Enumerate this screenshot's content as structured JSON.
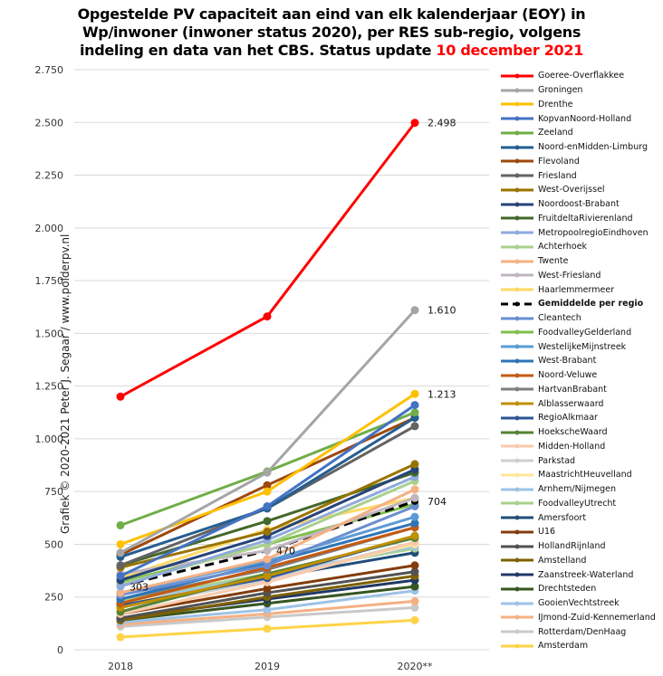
{
  "title": {
    "line1": "Opgestelde PV capaciteit aan eind van elk kalenderjaar (EOY) in",
    "line2": "Wp/inwoner (inwoner status 2020), per RES sub-regio, volgens",
    "line3_prefix": "indeling  en data van het CBS. Status update ",
    "line3_highlight": "10 december 2021"
  },
  "watermark": "Grafiek © 2020-2021 Peter J. Segaar / www.polderpv.nl",
  "chart_data": {
    "type": "line",
    "title": "Opgestelde PV capaciteit aan eind van elk kalenderjaar (EOY) in Wp/inwoner (inwoner status 2020), per RES sub-regio, volgens indeling en data van het CBS. Status update 10 december 2021",
    "xlabel": "",
    "ylabel": "",
    "categories": [
      "2018",
      "2019",
      "2020**"
    ],
    "ylim": [
      0,
      2750
    ],
    "yticks": [
      0,
      250,
      500,
      750,
      1000,
      1250,
      1500,
      1750,
      2000,
      2250,
      2500,
      2750
    ],
    "ytick_labels": [
      "0",
      "250",
      "500",
      "750",
      "1.000",
      "1.250",
      "1.500",
      "1.750",
      "2.000",
      "2.250",
      "2.500",
      "2.750"
    ],
    "grid": true,
    "legend_position": "right",
    "series": [
      {
        "name": "Goeree-Overflakkee",
        "color": "#ff0000",
        "values": [
          1200,
          1580,
          2498
        ],
        "labels": [
          "",
          "",
          "2.498"
        ]
      },
      {
        "name": "Groningen",
        "color": "#a5a5a5",
        "values": [
          460,
          840,
          1610
        ],
        "labels": [
          "",
          "",
          "1.610"
        ]
      },
      {
        "name": "Drenthe",
        "color": "#ffc000",
        "values": [
          500,
          750,
          1213
        ],
        "labels": [
          "",
          "",
          "1.213"
        ]
      },
      {
        "name": "KopvanNoord-Holland",
        "color": "#4472c4",
        "values": [
          350,
          680,
          1160
        ]
      },
      {
        "name": "Zeeland",
        "color": "#70ad47",
        "values": [
          590,
          845,
          1125
        ]
      },
      {
        "name": "Noord-enMidden-Limburg",
        "color": "#255e91",
        "values": [
          440,
          670,
          1100
        ]
      },
      {
        "name": "Flevoland",
        "color": "#9e480e",
        "values": [
          450,
          780,
          1100
        ]
      },
      {
        "name": "Friesland",
        "color": "#636363",
        "values": [
          400,
          670,
          1060
        ]
      },
      {
        "name": "West-Overijssel",
        "color": "#997300",
        "values": [
          390,
          560,
          880
        ]
      },
      {
        "name": "Noordoost-Brabant",
        "color": "#264478",
        "values": [
          330,
          540,
          855
        ]
      },
      {
        "name": "FruitdeltaRivierenland",
        "color": "#43682b",
        "values": [
          400,
          610,
          840
        ]
      },
      {
        "name": "MetropoolregioEindhoven",
        "color": "#8faadc",
        "values": [
          300,
          520,
          820
        ]
      },
      {
        "name": "Achterhoek",
        "color": "#a9d18e",
        "values": [
          310,
          500,
          800
        ]
      },
      {
        "name": "Twente",
        "color": "#f4b183",
        "values": [
          270,
          430,
          760
        ]
      },
      {
        "name": "West-Friesland",
        "color": "#bfb6c0",
        "values": [
          360,
          470,
          720
        ]
      },
      {
        "name": "Haarlemmermeer",
        "color": "#ffd966",
        "values": [
          340,
          570,
          720
        ]
      },
      {
        "name": "Gemiddelde per regio",
        "color": "#000000",
        "dashed": true,
        "values": [
          303,
          470,
          704
        ],
        "labels": [
          "303",
          "470",
          "704"
        ]
      },
      {
        "name": "Cleantech",
        "color": "#698ed0",
        "values": [
          260,
          400,
          680
        ]
      },
      {
        "name": "FoodvalleyGelderland",
        "color": "#7fbf4d",
        "values": [
          320,
          500,
          690
        ]
      },
      {
        "name": "WestelijkeMijnstreek",
        "color": "#5b9bd5",
        "values": [
          270,
          420,
          630
        ]
      },
      {
        "name": "West-Brabant",
        "color": "#2e75b6",
        "values": [
          240,
          410,
          600
        ]
      },
      {
        "name": "Noord-Veluwe",
        "color": "#c55a11",
        "values": [
          220,
          390,
          580
        ]
      },
      {
        "name": "HartvanBrabant",
        "color": "#7f7f7f",
        "values": [
          240,
          380,
          580
        ]
      },
      {
        "name": "Alblasserwaard",
        "color": "#bf9000",
        "values": [
          200,
          350,
          540
        ]
      },
      {
        "name": "RegioAlkmaar",
        "color": "#2f5597",
        "values": [
          210,
          340,
          540
        ]
      },
      {
        "name": "HoekscheWaard",
        "color": "#548235",
        "values": [
          180,
          360,
          530
        ]
      },
      {
        "name": "Midden-Holland",
        "color": "#f8cbad",
        "values": [
          170,
          320,
          510
        ]
      },
      {
        "name": "Parkstad",
        "color": "#d0cece",
        "values": [
          200,
          330,
          510
        ]
      },
      {
        "name": "MaastrichtHeuvelland",
        "color": "#ffe699",
        "values": [
          220,
          330,
          500
        ]
      },
      {
        "name": "Arnhem/Nijmegen",
        "color": "#9dc3e6",
        "values": [
          220,
          350,
          490
        ]
      },
      {
        "name": "FoodvalleyUtrecht",
        "color": "#a9d08e",
        "values": [
          230,
          360,
          480
        ]
      },
      {
        "name": "Amersfoort",
        "color": "#1f4e79",
        "values": [
          230,
          340,
          460
        ]
      },
      {
        "name": "U16",
        "color": "#843c0c",
        "values": [
          170,
          290,
          400
        ]
      },
      {
        "name": "HollandRijnland",
        "color": "#525252",
        "values": [
          150,
          270,
          370
        ]
      },
      {
        "name": "Amstelland",
        "color": "#7f6000",
        "values": [
          140,
          250,
          350
        ]
      },
      {
        "name": "Zaanstreek-Waterland",
        "color": "#203864",
        "values": [
          150,
          240,
          330
        ]
      },
      {
        "name": "Drechtsteden",
        "color": "#375623",
        "values": [
          140,
          220,
          300
        ]
      },
      {
        "name": "GooienVechtstreek",
        "color": "#9dc3e6",
        "values": [
          130,
          190,
          280
        ]
      },
      {
        "name": "IJmond-Zuid-Kennemerland",
        "color": "#f4b183",
        "values": [
          120,
          170,
          230
        ]
      },
      {
        "name": "Rotterdam/DenHaag",
        "color": "#c9c9c9",
        "values": [
          110,
          155,
          200
        ]
      },
      {
        "name": "Amsterdam",
        "color": "#ffd347",
        "values": [
          60,
          100,
          140
        ]
      }
    ]
  }
}
